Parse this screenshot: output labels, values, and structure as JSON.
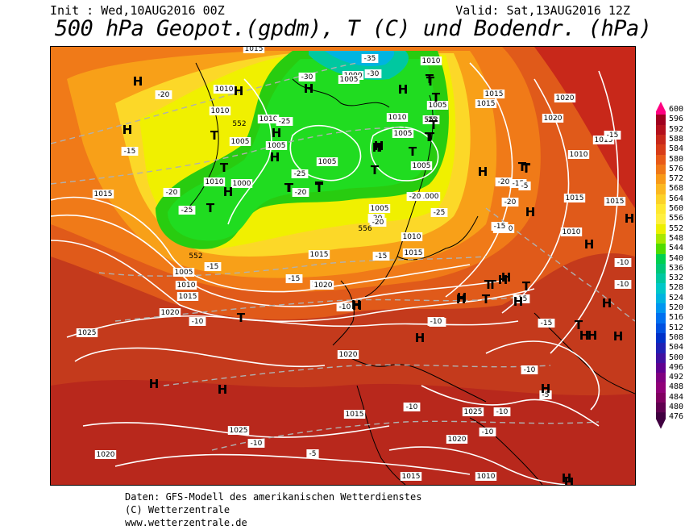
{
  "header": {
    "init": "Init : Wed,10AUG2016 00Z",
    "valid": "Valid: Sat,13AUG2016 12Z",
    "title": "500 hPa Geopot.(gpdm), T (C) und Bodendr. (hPa)"
  },
  "footer": {
    "line1": "Daten: GFS-Modell des amerikanischen Wetterdienstes",
    "line2": "(C) Wetterzentrale",
    "line3": "www.wetterzentrale.de"
  },
  "colorbar": {
    "labels": [
      "600",
      "596",
      "592",
      "588",
      "584",
      "580",
      "576",
      "572",
      "568",
      "564",
      "560",
      "556",
      "552",
      "548",
      "544",
      "540",
      "536",
      "532",
      "528",
      "524",
      "520",
      "516",
      "512",
      "508",
      "504",
      "500",
      "496",
      "492",
      "488",
      "484",
      "480",
      "476"
    ],
    "colors": [
      "#ff0080",
      "#a0001e",
      "#b4101c",
      "#c8281a",
      "#d83c18",
      "#e85a18",
      "#f07818",
      "#f89a18",
      "#fbb820",
      "#fcd228",
      "#ffe830",
      "#fff040",
      "#ecf000",
      "#a8e800",
      "#50dc00",
      "#00d050",
      "#00c878",
      "#00c8a0",
      "#00c8c8",
      "#00b4e0",
      "#0096f0",
      "#0070f0",
      "#0050e0",
      "#0030c8",
      "#2020b4",
      "#4010a0",
      "#600090",
      "#800080",
      "#900078",
      "#800060",
      "#600050",
      "#400040"
    ]
  },
  "map": {
    "pressure_labels": [
      "1015",
      "1010",
      "1010",
      "1005",
      "1010",
      "1005",
      "1010",
      "1015",
      "1005",
      "1000",
      "1005",
      "1000",
      "1005",
      "1010",
      "1005",
      "1015",
      "1010",
      "1005",
      "1000",
      "1005",
      "1010",
      "1015",
      "1015",
      "1020",
      "1020",
      "1015",
      "1010",
      "1005",
      "1010",
      "1015",
      "1020",
      "1025",
      "1020",
      "1025",
      "1020",
      "1015",
      "1020",
      "1025",
      "1020",
      "1015",
      "1010",
      "1015",
      "1020",
      "1020",
      "1015",
      "1010",
      "1015"
    ],
    "temp_labels": [
      "-35",
      "-30",
      "-30",
      "-25",
      "-20",
      "-20",
      "-25",
      "-25",
      "-25",
      "-20",
      "-25",
      "-20",
      "-20",
      "-20",
      "-20",
      "-15",
      "-15",
      "-15",
      "-15",
      "-15",
      "-20",
      "-15",
      "-10",
      "-10",
      "-10",
      "-10",
      "-15",
      "-15",
      "-10",
      "-10",
      "-5",
      "-5",
      "-10",
      "-10",
      "-10",
      "-10",
      "-5",
      "-15",
      "-10"
    ],
    "height_labels": [
      "552",
      "552",
      "552",
      "556"
    ],
    "pressure_centers": [
      "H",
      "H",
      "H",
      "H",
      "H",
      "H",
      "H",
      "H",
      "H",
      "H",
      "H",
      "H",
      "H",
      "H",
      "H",
      "H",
      "H",
      "H",
      "H",
      "H",
      "H",
      "H",
      "H",
      "H",
      "H",
      "H",
      "H",
      "H",
      "H",
      "H",
      "H",
      "H",
      "H",
      "H",
      "H",
      "H",
      "H"
    ],
    "trough_centers": [
      "T",
      "T",
      "T",
      "T",
      "T",
      "T",
      "T",
      "T",
      "T",
      "T",
      "T",
      "T",
      "T",
      "T",
      "T",
      "T",
      "T",
      "T",
      "T",
      "T",
      "T",
      "T",
      "T",
      "T",
      "T"
    ]
  }
}
